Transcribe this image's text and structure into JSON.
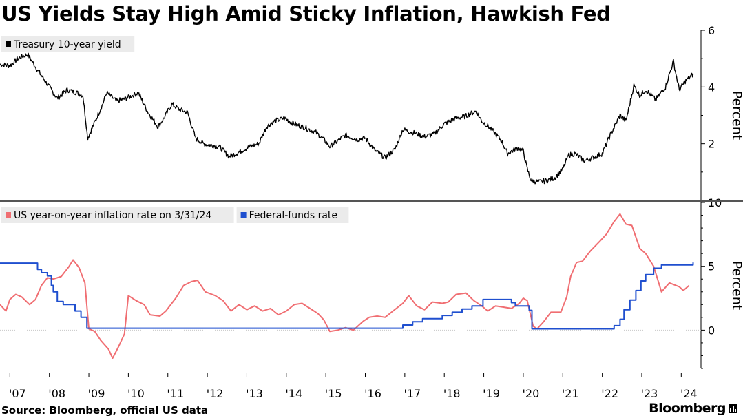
{
  "title": "US Yields Stay High Amid Sticky Inflation, Hawkish Fed",
  "source": "Source: Bloomberg, official US data",
  "brand": "Bloomberg",
  "colors": {
    "yield": "#000000",
    "inflation": "#f06e72",
    "fedfunds": "#1f4fcf",
    "panel_bg": "#ebebeb",
    "grid": "#c8c8c8"
  },
  "x_labels": [
    "'07",
    "'08",
    "'09",
    "'10",
    "'11",
    "'12",
    "'13",
    "'14",
    "'15",
    "'16",
    "'17",
    "'18",
    "'19",
    "'20",
    "'21",
    "'22",
    "'23",
    "'24"
  ],
  "chart_data": [
    {
      "type": "line",
      "ylabel": "Percent",
      "ylim": [
        0,
        6
      ],
      "yticks": [
        2,
        4,
        6
      ],
      "grid": false,
      "legend": "top-left",
      "series": [
        {
          "name": "Treasury 10-year yield",
          "color": "#000000",
          "x": [
            2006.75,
            2007.0,
            2007.2,
            2007.45,
            2007.7,
            2007.95,
            2008.2,
            2008.45,
            2008.7,
            2008.85,
            2008.97,
            2009.1,
            2009.35,
            2009.45,
            2009.7,
            2009.95,
            2010.25,
            2010.5,
            2010.75,
            2010.9,
            2011.1,
            2011.3,
            2011.5,
            2011.7,
            2011.9,
            2012.1,
            2012.3,
            2012.55,
            2012.8,
            2013.0,
            2013.3,
            2013.5,
            2013.7,
            2013.95,
            2014.2,
            2014.5,
            2014.75,
            2014.95,
            2015.1,
            2015.3,
            2015.5,
            2015.8,
            2016.0,
            2016.25,
            2016.5,
            2016.75,
            2016.95,
            2017.2,
            2017.5,
            2017.75,
            2018.0,
            2018.3,
            2018.5,
            2018.8,
            2018.95,
            2019.2,
            2019.45,
            2019.6,
            2019.85,
            2020.0,
            2020.1,
            2020.2,
            2020.4,
            2020.6,
            2020.8,
            2021.0,
            2021.15,
            2021.3,
            2021.55,
            2021.75,
            2022.0,
            2022.2,
            2022.45,
            2022.6,
            2022.8,
            2022.95,
            2023.1,
            2023.35,
            2023.6,
            2023.8,
            2023.95,
            2024.1,
            2024.3
          ],
          "values": [
            4.8,
            4.75,
            5.0,
            5.15,
            4.6,
            4.1,
            3.6,
            3.9,
            3.8,
            3.7,
            2.2,
            2.6,
            3.4,
            3.8,
            3.5,
            3.6,
            3.8,
            3.1,
            2.6,
            2.9,
            3.4,
            3.2,
            3.1,
            2.2,
            2.0,
            1.95,
            1.9,
            1.55,
            1.7,
            1.85,
            2.0,
            2.6,
            2.8,
            2.9,
            2.7,
            2.55,
            2.4,
            2.15,
            1.9,
            2.1,
            2.3,
            2.15,
            2.2,
            1.75,
            1.5,
            1.8,
            2.5,
            2.4,
            2.25,
            2.35,
            2.7,
            2.9,
            2.95,
            3.15,
            2.8,
            2.5,
            2.1,
            1.65,
            1.85,
            1.75,
            1.1,
            0.7,
            0.65,
            0.7,
            0.8,
            1.1,
            1.6,
            1.65,
            1.4,
            1.5,
            1.65,
            2.3,
            3.0,
            2.8,
            4.05,
            3.7,
            3.9,
            3.55,
            4.0,
            4.9,
            3.9,
            4.2,
            4.45
          ]
        }
      ]
    },
    {
      "type": "line",
      "ylabel": "Percent",
      "ylim": [
        -3,
        10
      ],
      "yticks": [
        0,
        5,
        10
      ],
      "grid": false,
      "legend": "top-left",
      "series": [
        {
          "name": "US year-on-year inflation rate on 3/31/24",
          "color": "#f06e72",
          "x": [
            2006.75,
            2006.9,
            2007.0,
            2007.15,
            2007.3,
            2007.5,
            2007.65,
            2007.8,
            2007.95,
            2008.1,
            2008.3,
            2008.5,
            2008.6,
            2008.75,
            2008.9,
            2009.0,
            2009.15,
            2009.3,
            2009.5,
            2009.6,
            2009.75,
            2009.9,
            2010.0,
            2010.2,
            2010.4,
            2010.55,
            2010.8,
            2010.95,
            2011.2,
            2011.4,
            2011.6,
            2011.75,
            2011.95,
            2012.2,
            2012.4,
            2012.6,
            2012.8,
            2013.0,
            2013.2,
            2013.4,
            2013.6,
            2013.8,
            2014.0,
            2014.2,
            2014.4,
            2014.6,
            2014.8,
            2014.95,
            2015.1,
            2015.3,
            2015.5,
            2015.7,
            2015.95,
            2016.1,
            2016.3,
            2016.5,
            2016.7,
            2016.95,
            2017.1,
            2017.3,
            2017.5,
            2017.7,
            2017.95,
            2018.1,
            2018.3,
            2018.55,
            2018.75,
            2018.95,
            2019.1,
            2019.3,
            2019.5,
            2019.7,
            2019.9,
            2020.0,
            2020.1,
            2020.25,
            2020.35,
            2020.5,
            2020.7,
            2020.95,
            2021.1,
            2021.2,
            2021.35,
            2021.5,
            2021.7,
            2021.95,
            2022.1,
            2022.3,
            2022.45,
            2022.6,
            2022.75,
            2022.95,
            2023.1,
            2023.3,
            2023.5,
            2023.7,
            2023.95,
            2024.05,
            2024.2
          ],
          "values": [
            2.0,
            1.5,
            2.4,
            2.8,
            2.6,
            2.0,
            2.4,
            3.5,
            4.1,
            4.0,
            4.2,
            5.0,
            5.5,
            4.9,
            3.7,
            0.1,
            -0.1,
            -0.8,
            -1.5,
            -2.2,
            -1.3,
            -0.3,
            2.7,
            2.3,
            2.0,
            1.2,
            1.1,
            1.5,
            2.5,
            3.5,
            3.8,
            3.9,
            3.0,
            2.7,
            2.3,
            1.5,
            2.0,
            1.6,
            1.9,
            1.5,
            1.7,
            1.2,
            1.5,
            2.0,
            2.1,
            1.7,
            1.3,
            0.8,
            -0.1,
            0.0,
            0.2,
            0.0,
            0.7,
            1.0,
            1.1,
            1.0,
            1.5,
            2.1,
            2.7,
            1.9,
            1.6,
            2.2,
            2.1,
            2.2,
            2.8,
            2.9,
            2.3,
            1.9,
            1.5,
            1.9,
            1.8,
            1.7,
            2.1,
            2.5,
            2.3,
            0.3,
            0.1,
            0.6,
            1.4,
            1.4,
            2.6,
            4.2,
            5.3,
            5.4,
            6.2,
            7.0,
            7.5,
            8.5,
            9.1,
            8.3,
            8.2,
            6.4,
            6.0,
            5.0,
            3.0,
            3.7,
            3.4,
            3.1,
            3.5
          ]
        },
        {
          "name": "Federal-funds rate",
          "color": "#1f4fcf",
          "x": [
            2006.75,
            2007.55,
            2007.7,
            2007.8,
            2007.95,
            2008.05,
            2008.1,
            2008.2,
            2008.35,
            2008.65,
            2008.8,
            2008.95,
            2015.95,
            2016.95,
            2017.2,
            2017.45,
            2017.95,
            2018.2,
            2018.45,
            2018.7,
            2018.98,
            2019.55,
            2019.7,
            2019.8,
            2020.15,
            2020.22,
            2022.2,
            2022.3,
            2022.45,
            2022.55,
            2022.7,
            2022.85,
            2022.98,
            2023.1,
            2023.3,
            2023.5,
            2024.3
          ],
          "values": [
            5.25,
            5.25,
            4.75,
            4.5,
            4.25,
            3.5,
            3.0,
            2.25,
            2.0,
            1.5,
            1.0,
            0.15,
            0.15,
            0.4,
            0.65,
            0.9,
            1.15,
            1.4,
            1.65,
            1.9,
            2.4,
            2.4,
            2.15,
            1.9,
            1.55,
            0.1,
            0.1,
            0.35,
            0.85,
            1.6,
            2.35,
            3.1,
            3.85,
            4.35,
            4.85,
            5.1,
            5.3
          ]
        }
      ]
    }
  ]
}
